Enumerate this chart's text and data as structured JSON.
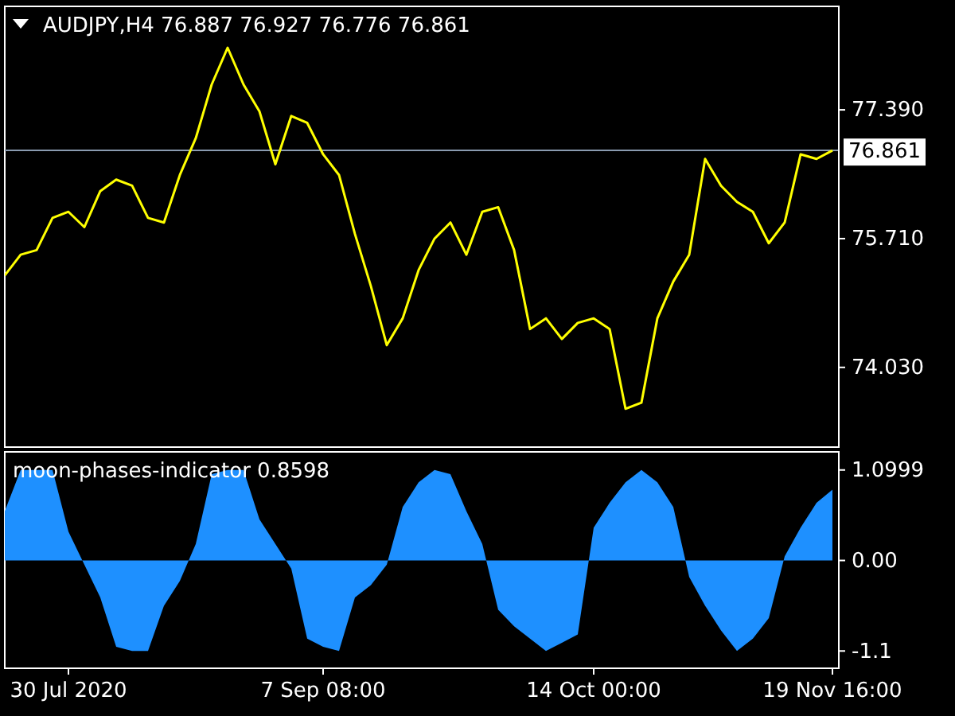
{
  "chart_data": [
    {
      "type": "line",
      "title": "AUDJPY,H4  76.887 76.927 76.776 76.861",
      "tick_labels": "y",
      "grid": false,
      "marker": "none",
      "line_style": "solid",
      "categories": [
        null,
        null,
        null,
        null,
        null,
        null,
        null,
        null,
        null,
        null,
        null,
        null,
        null,
        null,
        null,
        null,
        null,
        null,
        null,
        null,
        null,
        null,
        null,
        null,
        null,
        null,
        null,
        null,
        null,
        null,
        null,
        null,
        null,
        null,
        null,
        null,
        null,
        null,
        null,
        null,
        null,
        null,
        null,
        null,
        null,
        null,
        null,
        null,
        null,
        null,
        null,
        null,
        null
      ],
      "ylim": [
        72.99,
        78.74
      ],
      "yticks": [
        {
          "value": 77.39,
          "label": "77.390"
        },
        {
          "value": 75.71,
          "label": "75.710"
        },
        {
          "value": 74.03,
          "label": "74.030"
        }
      ],
      "ref_lines": [
        {
          "axis": "y",
          "value": 76.861,
          "label": "76.861",
          "color": "#8a9bb0"
        }
      ],
      "series": [
        {
          "color": "#ffff00",
          "values": [
            75.23,
            75.5,
            75.56,
            75.98,
            76.06,
            75.86,
            76.33,
            76.48,
            76.4,
            75.98,
            75.92,
            76.54,
            77.02,
            77.72,
            78.2,
            77.72,
            77.37,
            76.68,
            77.31,
            77.22,
            76.81,
            76.54,
            75.77,
            75.09,
            74.32,
            74.67,
            75.3,
            75.71,
            75.92,
            75.5,
            76.06,
            76.12,
            75.56,
            74.53,
            74.67,
            74.4,
            74.61,
            74.67,
            74.53,
            73.49,
            73.57,
            74.67,
            75.15,
            75.5,
            76.75,
            76.4,
            76.19,
            76.06,
            75.65,
            75.92,
            76.81,
            76.75,
            76.86
          ]
        }
      ]
    },
    {
      "type": "area",
      "title": "moon-phases-indicator 0.8598",
      "grid": false,
      "categories": [
        null,
        null,
        null,
        null,
        "30 Jul 2020",
        null,
        null,
        null,
        null,
        null,
        null,
        null,
        null,
        null,
        null,
        null,
        null,
        null,
        null,
        null,
        "7 Sep 08:00",
        null,
        null,
        null,
        null,
        null,
        null,
        null,
        null,
        null,
        null,
        null,
        null,
        null,
        null,
        null,
        null,
        "14 Oct 00:00",
        null,
        null,
        null,
        null,
        null,
        null,
        null,
        null,
        null,
        null,
        null,
        null,
        null,
        null,
        "19 Nov 16:00"
      ],
      "ylim": [
        -1.31,
        1.32
      ],
      "yticks": [
        1.0999,
        {
          "value": 0,
          "label": "0.00"
        },
        -1.1
      ],
      "series": [
        {
          "color": "#1e90ff",
          "values": [
            0.6,
            1.1,
            1.1,
            1.1,
            0.35,
            -0.05,
            -0.45,
            -1.05,
            -1.1,
            -1.1,
            -0.55,
            -0.25,
            0.2,
            1.05,
            1.1,
            1.1,
            0.5,
            0.2,
            -0.1,
            -0.95,
            -1.05,
            -1.1,
            -0.45,
            -0.3,
            -0.05,
            0.65,
            0.95,
            1.1,
            1.05,
            0.6,
            0.2,
            -0.6,
            -0.8,
            -0.95,
            -1.1,
            -1.0,
            -0.9,
            0.4,
            0.7,
            0.95,
            1.1,
            0.95,
            0.65,
            -0.2,
            -0.55,
            -0.85,
            -1.1,
            -0.95,
            -0.7,
            0.05,
            0.4,
            0.7,
            0.86
          ]
        }
      ]
    }
  ]
}
